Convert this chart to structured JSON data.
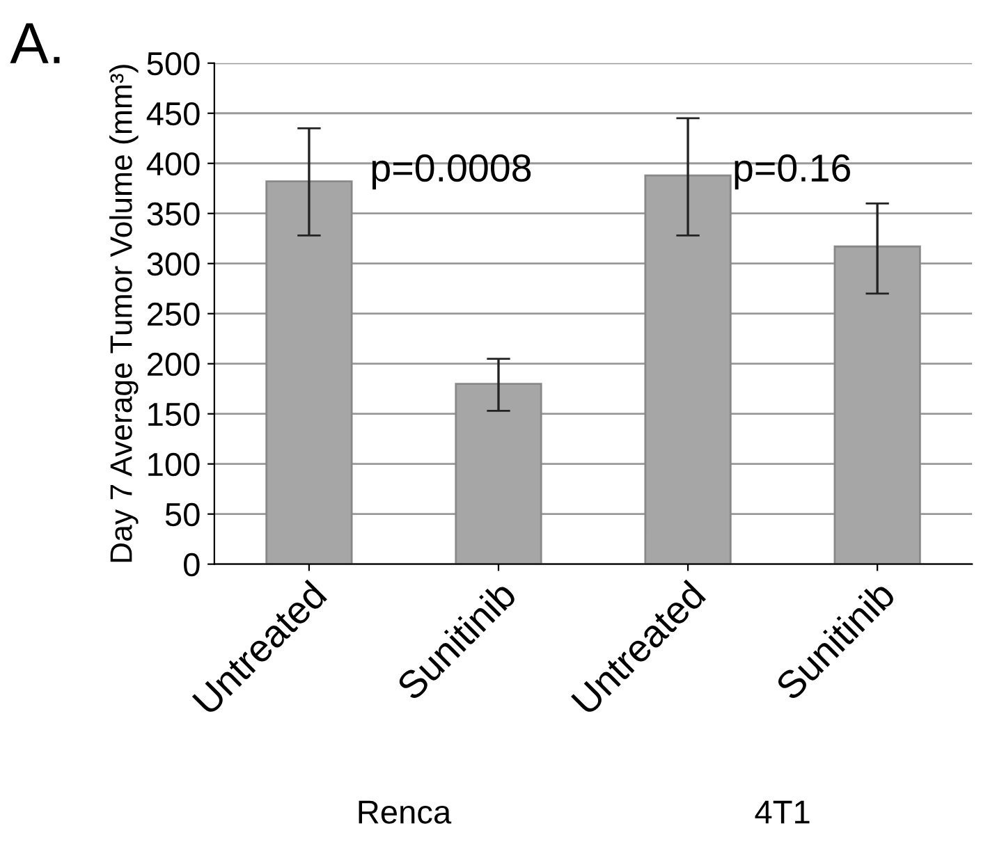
{
  "chart_data": {
    "type": "bar",
    "ylabel": "Day 7 Average Tumor Volume (mm³)",
    "categories": [
      "Untreated",
      "Sunitinib",
      "Untreated",
      "Sunitinib"
    ],
    "series": [
      {
        "color": "#a6a6a6",
        "values": [
          382,
          180,
          388,
          317
        ],
        "errors": [
          [
            328,
            435
          ],
          [
            153,
            205
          ],
          [
            328,
            445
          ],
          [
            270,
            360
          ]
        ]
      }
    ],
    "ylim": [
      0,
      500
    ],
    "yticks": [
      0,
      50,
      100,
      150,
      200,
      250,
      300,
      350,
      400,
      450,
      500
    ],
    "grid": "y",
    "legend": false,
    "annotations": [
      "A.",
      "p=0.0008",
      "p=0.16",
      "Renca",
      "4T1"
    ]
  }
}
